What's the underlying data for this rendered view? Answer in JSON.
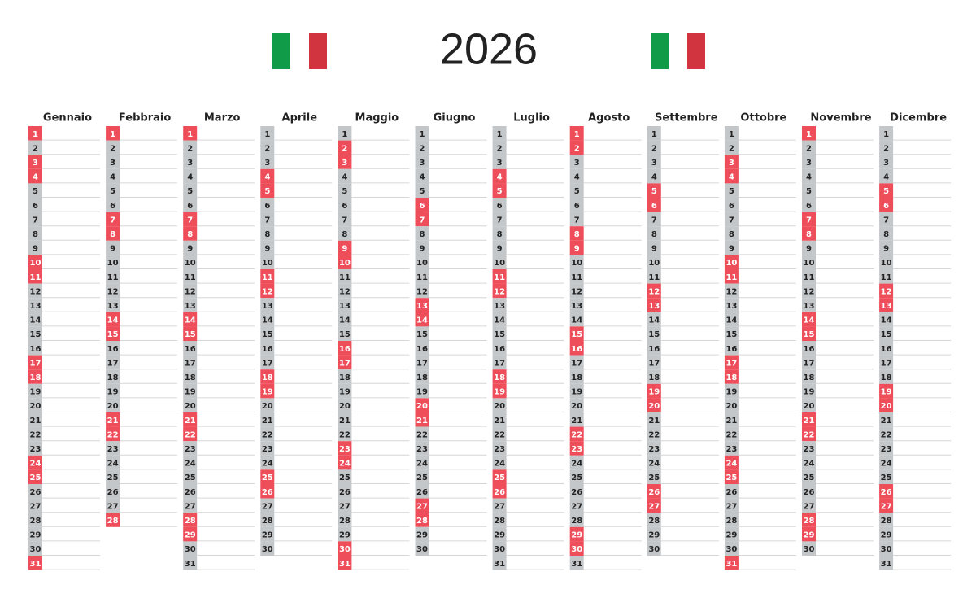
{
  "title": "2026",
  "months": [
    {
      "name": "Gennaio",
      "days": [
        1,
        2,
        3,
        4,
        5,
        6,
        7,
        8,
        9,
        10,
        11,
        12,
        13,
        14,
        15,
        16,
        17,
        18,
        19,
        20,
        21,
        22,
        23,
        24,
        25,
        26,
        27,
        28,
        29,
        30,
        31
      ],
      "red_days": [
        1,
        3,
        4,
        10,
        11,
        17,
        18,
        24,
        25,
        31
      ]
    },
    {
      "name": "Febbraio",
      "days": [
        1,
        2,
        3,
        4,
        5,
        6,
        7,
        8,
        9,
        10,
        11,
        12,
        13,
        14,
        15,
        16,
        17,
        18,
        19,
        20,
        21,
        22,
        23,
        24,
        25,
        26,
        27,
        28
      ],
      "red_days": [
        1,
        7,
        8,
        14,
        15,
        21,
        22,
        28
      ]
    },
    {
      "name": "Marzo",
      "days": [
        1,
        2,
        3,
        4,
        5,
        6,
        7,
        8,
        9,
        10,
        11,
        12,
        13,
        14,
        15,
        16,
        17,
        18,
        19,
        20,
        21,
        22,
        23,
        24,
        25,
        26,
        27,
        28,
        29,
        30,
        31
      ],
      "red_days": [
        1,
        7,
        8,
        14,
        15,
        21,
        22,
        28,
        29
      ]
    },
    {
      "name": "Aprile",
      "days": [
        1,
        2,
        3,
        4,
        5,
        6,
        7,
        8,
        9,
        10,
        11,
        12,
        13,
        14,
        15,
        16,
        17,
        18,
        19,
        20,
        21,
        22,
        23,
        24,
        25,
        26,
        27,
        28,
        29,
        30
      ],
      "red_days": [
        4,
        5,
        11,
        12,
        18,
        19,
        25,
        26
      ]
    },
    {
      "name": "Maggio",
      "days": [
        1,
        2,
        3,
        4,
        5,
        6,
        7,
        8,
        9,
        10,
        11,
        12,
        13,
        14,
        15,
        16,
        17,
        18,
        19,
        20,
        21,
        22,
        23,
        24,
        25,
        26,
        27,
        28,
        29,
        30,
        31
      ],
      "red_days": [
        2,
        3,
        9,
        10,
        16,
        17,
        23,
        24,
        30,
        31
      ]
    },
    {
      "name": "Giugno",
      "days": [
        1,
        2,
        3,
        4,
        5,
        6,
        7,
        8,
        9,
        10,
        11,
        12,
        13,
        14,
        15,
        16,
        17,
        18,
        19,
        20,
        21,
        22,
        23,
        24,
        25,
        26,
        27,
        28,
        29,
        30
      ],
      "red_days": [
        6,
        7,
        13,
        14,
        20,
        21,
        27,
        28
      ]
    },
    {
      "name": "Luglio",
      "days": [
        1,
        2,
        3,
        4,
        5,
        6,
        7,
        8,
        9,
        10,
        11,
        12,
        13,
        14,
        15,
        16,
        17,
        18,
        19,
        20,
        21,
        22,
        23,
        24,
        25,
        26,
        27,
        28,
        29,
        30,
        31
      ],
      "red_days": [
        4,
        5,
        11,
        12,
        18,
        19,
        25,
        26
      ]
    },
    {
      "name": "Agosto",
      "days": [
        1,
        2,
        3,
        4,
        5,
        6,
        7,
        8,
        9,
        10,
        11,
        12,
        13,
        14,
        15,
        16,
        17,
        18,
        19,
        20,
        21,
        22,
        23,
        24,
        25,
        26,
        27,
        28,
        29,
        30,
        31
      ],
      "red_days": [
        1,
        2,
        8,
        9,
        15,
        16,
        22,
        23,
        29,
        30
      ]
    },
    {
      "name": "Settembre",
      "days": [
        1,
        2,
        3,
        4,
        5,
        6,
        7,
        8,
        9,
        10,
        11,
        12,
        13,
        14,
        15,
        16,
        17,
        18,
        19,
        20,
        21,
        22,
        23,
        24,
        25,
        26,
        27,
        28,
        29,
        30
      ],
      "red_days": [
        5,
        6,
        12,
        13,
        19,
        20,
        26,
        27
      ]
    },
    {
      "name": "Ottobre",
      "days": [
        1,
        2,
        3,
        4,
        5,
        6,
        7,
        8,
        9,
        10,
        11,
        12,
        13,
        14,
        15,
        16,
        17,
        18,
        19,
        20,
        21,
        22,
        23,
        24,
        25,
        26,
        27,
        28,
        29,
        30,
        31
      ],
      "red_days": [
        3,
        4,
        10,
        11,
        17,
        18,
        24,
        25,
        31
      ]
    },
    {
      "name": "Novembre",
      "days": [
        1,
        2,
        3,
        4,
        5,
        6,
        7,
        8,
        9,
        10,
        11,
        12,
        13,
        14,
        15,
        16,
        17,
        18,
        19,
        20,
        21,
        22,
        23,
        24,
        25,
        26,
        27,
        28,
        29,
        30
      ],
      "red_days": [
        1,
        7,
        8,
        14,
        15,
        21,
        22,
        28,
        29
      ]
    },
    {
      "name": "Dicembre",
      "days": [
        1,
        2,
        3,
        4,
        5,
        6,
        7,
        8,
        9,
        10,
        11,
        12,
        13,
        14,
        15,
        16,
        17,
        18,
        19,
        20,
        21,
        22,
        23,
        24,
        25,
        26,
        27,
        28,
        29,
        30,
        31
      ],
      "red_days": [
        5,
        6,
        12,
        13,
        19,
        20,
        26,
        27
      ]
    }
  ]
}
